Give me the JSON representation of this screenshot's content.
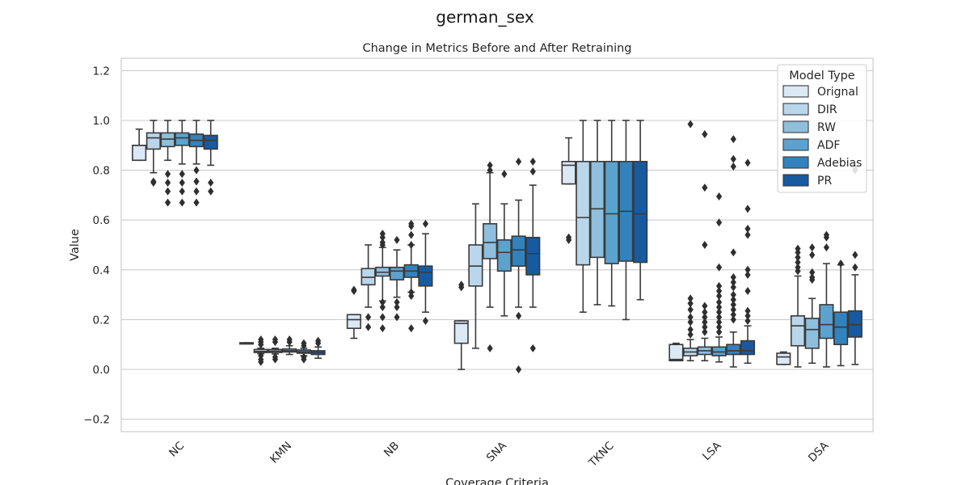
{
  "chart_data": {
    "type": "box",
    "suptitle": "german_sex",
    "title": "Change in Metrics Before and After Retraining",
    "xlabel": "Coverage Criteria",
    "ylabel": "Value",
    "ylim": [
      -0.25,
      1.25
    ],
    "yticks": [
      -0.2,
      0.0,
      0.2,
      0.4,
      0.6,
      0.8,
      1.0,
      1.2
    ],
    "ytick_labels": [
      "−0.2",
      "0.0",
      "0.2",
      "0.4",
      "0.6",
      "0.8",
      "1.0",
      "1.2"
    ],
    "grid": true,
    "legend": {
      "title": "Model Type",
      "placement": "top-right"
    },
    "categories": [
      "NC",
      "KMN",
      "NB",
      "SNA",
      "TKNC",
      "LSA",
      "DSA"
    ],
    "series": [
      {
        "name": "Orignal",
        "color": "#dbe8f6"
      },
      {
        "name": "DIR",
        "color": "#bad6eb"
      },
      {
        "name": "RW",
        "color": "#8ebfdd"
      },
      {
        "name": "ADF",
        "color": "#5ca2cf"
      },
      {
        "name": "Adebias",
        "color": "#3282bd"
      },
      {
        "name": "PR",
        "color": "#175aa1"
      }
    ],
    "boxes": [
      [
        {
          "whislo": 0.84,
          "q1": 0.84,
          "med": 0.9,
          "q3": 0.9,
          "whishi": 0.965,
          "fliers": []
        },
        {
          "whislo": 0.79,
          "q1": 0.885,
          "med": 0.93,
          "q3": 0.95,
          "whishi": 1.0,
          "fliers": [
            0.75,
            0.755
          ]
        },
        {
          "whislo": 0.84,
          "q1": 0.895,
          "med": 0.925,
          "q3": 0.95,
          "whishi": 1.0,
          "fliers": [
            0.785,
            0.75,
            0.715,
            0.67
          ]
        },
        {
          "whislo": 0.825,
          "q1": 0.9,
          "med": 0.93,
          "q3": 0.95,
          "whishi": 1.0,
          "fliers": [
            0.785,
            0.75,
            0.715,
            0.67
          ]
        },
        {
          "whislo": 0.825,
          "q1": 0.895,
          "med": 0.92,
          "q3": 0.945,
          "whishi": 1.0,
          "fliers": [
            0.8,
            0.755,
            0.715,
            0.67
          ]
        },
        {
          "whislo": 0.82,
          "q1": 0.885,
          "med": 0.92,
          "q3": 0.94,
          "whishi": 1.0,
          "fliers": [
            0.75,
            0.715
          ]
        }
      ],
      [
        {
          "whislo": 0.103,
          "q1": 0.103,
          "med": 0.105,
          "q3": 0.107,
          "whishi": 0.107,
          "fliers": []
        },
        {
          "whislo": 0.063,
          "q1": 0.068,
          "med": 0.072,
          "q3": 0.08,
          "whishi": 0.085,
          "fliers": [
            0.12,
            0.11,
            0.1,
            0.055,
            0.04,
            0.03
          ]
        },
        {
          "whislo": 0.062,
          "q1": 0.068,
          "med": 0.073,
          "q3": 0.08,
          "whishi": 0.085,
          "fliers": [
            0.12,
            0.11,
            0.05,
            0.04
          ]
        },
        {
          "whislo": 0.06,
          "q1": 0.07,
          "med": 0.075,
          "q3": 0.082,
          "whishi": 0.095,
          "fliers": [
            0.12,
            0.11
          ]
        },
        {
          "whislo": 0.055,
          "q1": 0.065,
          "med": 0.07,
          "q3": 0.078,
          "whishi": 0.085,
          "fliers": [
            0.105,
            0.095,
            0.05,
            0.04
          ]
        },
        {
          "whislo": 0.045,
          "q1": 0.06,
          "med": 0.068,
          "q3": 0.075,
          "whishi": 0.09,
          "fliers": [
            0.115,
            0.105
          ]
        }
      ],
      [
        {
          "whislo": 0.125,
          "q1": 0.165,
          "med": 0.2,
          "q3": 0.22,
          "whishi": 0.22,
          "fliers": [
            0.32,
            0.315
          ]
        },
        {
          "whislo": 0.25,
          "q1": 0.34,
          "med": 0.37,
          "q3": 0.405,
          "whishi": 0.5,
          "fliers": [
            0.21,
            0.17
          ]
        },
        {
          "whislo": 0.275,
          "q1": 0.375,
          "med": 0.39,
          "q3": 0.41,
          "whishi": 0.49,
          "fliers": [
            0.545,
            0.53,
            0.51,
            0.5,
            0.27,
            0.25,
            0.21,
            0.165
          ]
        },
        {
          "whislo": 0.29,
          "q1": 0.36,
          "med": 0.395,
          "q3": 0.41,
          "whishi": 0.48,
          "fliers": [
            0.52,
            0.27,
            0.25,
            0.21
          ]
        },
        {
          "whislo": 0.31,
          "q1": 0.37,
          "med": 0.395,
          "q3": 0.42,
          "whishi": 0.5,
          "fliers": [
            0.585,
            0.575,
            0.54,
            0.5,
            0.31,
            0.295,
            0.165
          ]
        },
        {
          "whislo": 0.23,
          "q1": 0.335,
          "med": 0.39,
          "q3": 0.415,
          "whishi": 0.545,
          "fliers": [
            0.585,
            0.195
          ]
        }
      ],
      [
        {
          "whislo": 0.0,
          "q1": 0.105,
          "med": 0.185,
          "q3": 0.195,
          "whishi": 0.195,
          "fliers": [
            0.34,
            0.33
          ]
        },
        {
          "whislo": 0.085,
          "q1": 0.335,
          "med": 0.415,
          "q3": 0.5,
          "whishi": 0.665,
          "fliers": []
        },
        {
          "whislo": 0.25,
          "q1": 0.445,
          "med": 0.51,
          "q3": 0.585,
          "whishi": 0.79,
          "fliers": [
            0.82,
            0.8,
            0.085
          ]
        },
        {
          "whislo": 0.215,
          "q1": 0.395,
          "med": 0.47,
          "q3": 0.52,
          "whishi": 0.665,
          "fliers": [
            0.785
          ]
        },
        {
          "whislo": 0.25,
          "q1": 0.415,
          "med": 0.48,
          "q3": 0.535,
          "whishi": 0.68,
          "fliers": [
            0.835,
            0.215,
            0.0
          ]
        },
        {
          "whislo": 0.25,
          "q1": 0.38,
          "med": 0.465,
          "q3": 0.53,
          "whishi": 0.74,
          "fliers": [
            0.835,
            0.795,
            0.085
          ]
        }
      ],
      [
        {
          "whislo": 0.745,
          "q1": 0.745,
          "med": 0.82,
          "q3": 0.835,
          "whishi": 0.93,
          "fliers": [
            0.53,
            0.52
          ]
        },
        {
          "whislo": 0.23,
          "q1": 0.42,
          "med": 0.61,
          "q3": 0.835,
          "whishi": 1.0,
          "fliers": []
        },
        {
          "whislo": 0.26,
          "q1": 0.45,
          "med": 0.645,
          "q3": 0.835,
          "whishi": 1.0,
          "fliers": []
        },
        {
          "whislo": 0.255,
          "q1": 0.425,
          "med": 0.625,
          "q3": 0.835,
          "whishi": 1.0,
          "fliers": []
        },
        {
          "whislo": 0.2,
          "q1": 0.435,
          "med": 0.635,
          "q3": 0.835,
          "whishi": 1.0,
          "fliers": []
        },
        {
          "whislo": 0.28,
          "q1": 0.43,
          "med": 0.625,
          "q3": 0.835,
          "whishi": 1.0,
          "fliers": []
        }
      ],
      [
        {
          "whislo": 0.035,
          "q1": 0.035,
          "med": 0.04,
          "q3": 0.1,
          "whishi": 0.105,
          "fliers": []
        },
        {
          "whislo": 0.035,
          "q1": 0.055,
          "med": 0.07,
          "q3": 0.085,
          "whishi": 0.12,
          "fliers": [
            0.985,
            0.285,
            0.265,
            0.24,
            0.21,
            0.19,
            0.16,
            0.14
          ]
        },
        {
          "whislo": 0.035,
          "q1": 0.06,
          "med": 0.075,
          "q3": 0.09,
          "whishi": 0.125,
          "fliers": [
            0.945,
            0.73,
            0.5,
            0.255,
            0.23,
            0.21,
            0.19,
            0.17,
            0.15
          ]
        },
        {
          "whislo": 0.03,
          "q1": 0.055,
          "med": 0.07,
          "q3": 0.09,
          "whishi": 0.13,
          "fliers": [
            0.695,
            0.59,
            0.41,
            0.335,
            0.315,
            0.295,
            0.27,
            0.25,
            0.23,
            0.21,
            0.19,
            0.17,
            0.15
          ]
        },
        {
          "whislo": 0.01,
          "q1": 0.06,
          "med": 0.075,
          "q3": 0.1,
          "whishi": 0.15,
          "fliers": [
            0.925,
            0.845,
            0.815,
            0.47,
            0.37,
            0.35,
            0.33,
            0.3,
            0.28,
            0.26,
            0.24,
            0.22,
            0.2
          ]
        },
        {
          "whislo": 0.025,
          "q1": 0.06,
          "med": 0.075,
          "q3": 0.115,
          "whishi": 0.175,
          "fliers": [
            0.83,
            0.645,
            0.565,
            0.54,
            0.4,
            0.38,
            0.315,
            0.235,
            0.215,
            0.195
          ]
        }
      ],
      [
        {
          "whislo": 0.02,
          "q1": 0.02,
          "med": 0.05,
          "q3": 0.065,
          "whishi": 0.07,
          "fliers": []
        },
        {
          "whislo": 0.01,
          "q1": 0.095,
          "med": 0.175,
          "q3": 0.215,
          "whishi": 0.375,
          "fliers": [
            0.485,
            0.47,
            0.45,
            0.43,
            0.41,
            0.395
          ]
        },
        {
          "whislo": 0.025,
          "q1": 0.085,
          "med": 0.16,
          "q3": 0.205,
          "whishi": 0.285,
          "fliers": [
            0.49,
            0.46,
            0.39,
            0.37,
            0.36
          ]
        },
        {
          "whislo": 0.01,
          "q1": 0.125,
          "med": 0.18,
          "q3": 0.26,
          "whishi": 0.425,
          "fliers": [
            0.54,
            0.53,
            0.49
          ]
        },
        {
          "whislo": 0.015,
          "q1": 0.1,
          "med": 0.17,
          "q3": 0.23,
          "whishi": 0.42,
          "fliers": [
            0.425
          ]
        },
        {
          "whislo": 0.02,
          "q1": 0.13,
          "med": 0.18,
          "q3": 0.235,
          "whishi": 0.38,
          "fliers": [
            0.46,
            0.41,
            0.81,
            0.8
          ]
        }
      ]
    ]
  }
}
